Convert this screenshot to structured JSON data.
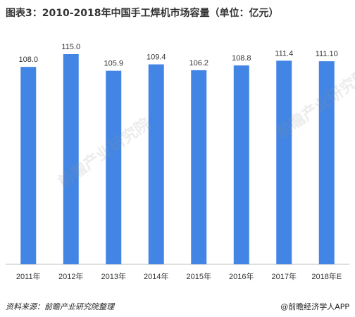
{
  "title": "图表3：2010-2018年中国手工焊机市场容量（单位：亿元）",
  "chart_data": {
    "type": "bar",
    "title": "图表3：2010-2018年中国手工焊机市场容量（单位：亿元）",
    "categories": [
      "2011年",
      "2012年",
      "2013年",
      "2014年",
      "2015年",
      "2016年",
      "2017年",
      "2018年E"
    ],
    "values": [
      108.0,
      115.0,
      105.9,
      109.4,
      106.2,
      108.8,
      111.4,
      111.1
    ],
    "value_labels": [
      "108.0",
      "115.0",
      "105.9",
      "109.4",
      "106.2",
      "108.8",
      "111.4",
      "111.10"
    ],
    "xlabel": "",
    "ylabel": "",
    "ylim": [
      0,
      125
    ],
    "grid": false,
    "bar_color": "#4285e4"
  },
  "footer": {
    "source": "资料来源：前瞻产业研究院整理",
    "credit": "@前瞻经济学人APP"
  },
  "watermark": "前瞻产业研究院"
}
